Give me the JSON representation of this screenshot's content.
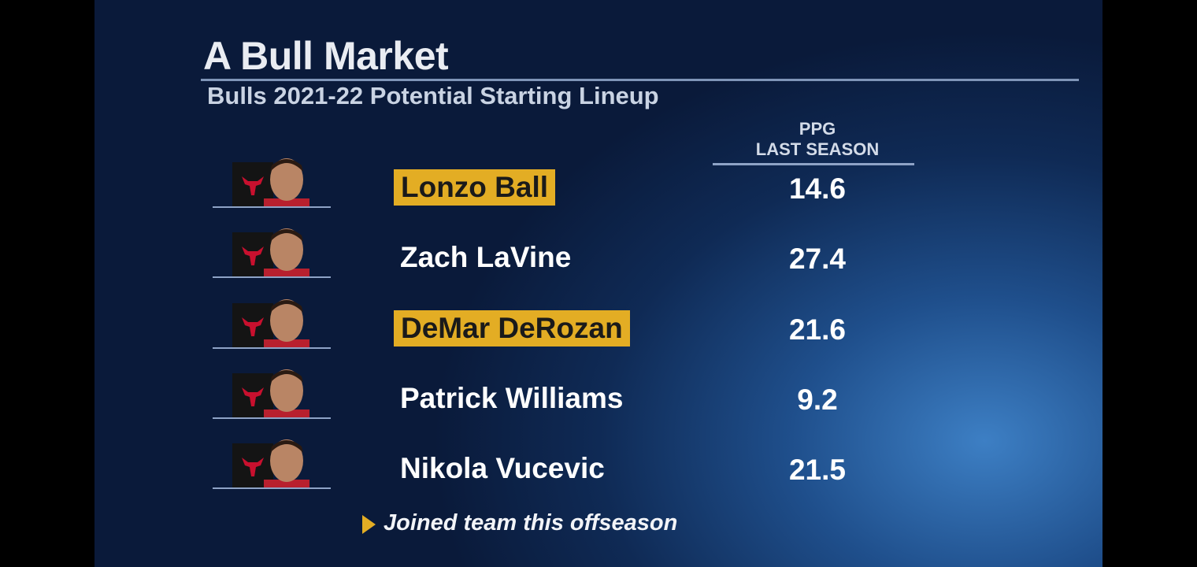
{
  "header": {
    "title": "A Bull Market",
    "subtitle": "Bulls 2021-22 Potential Starting Lineup"
  },
  "table": {
    "column_header": [
      "PPG",
      "LAST SEASON"
    ],
    "rows": [
      {
        "name": "Lonzo Ball",
        "ppg": 14.6,
        "joined": true
      },
      {
        "name": "Zach LaVine",
        "ppg": 27.4,
        "joined": false
      },
      {
        "name": "DeMar DeRozan",
        "ppg": 21.6,
        "joined": true
      },
      {
        "name": "Patrick Williams",
        "ppg": 9.2,
        "joined": false
      },
      {
        "name": "Nikola Vucevic",
        "ppg": 21.5,
        "joined": false
      }
    ]
  },
  "footnote": "Joined team this offseason"
}
